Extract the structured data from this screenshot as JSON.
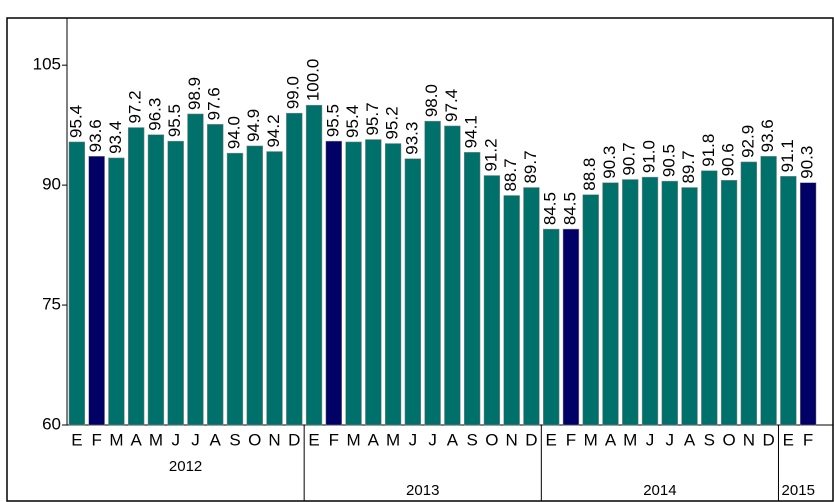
{
  "chart_data": {
    "type": "bar",
    "categories": [
      "E",
      "F",
      "M",
      "A",
      "M",
      "J",
      "J",
      "A",
      "S",
      "O",
      "N",
      "D",
      "E",
      "F",
      "M",
      "A",
      "M",
      "J",
      "J",
      "A",
      "S",
      "O",
      "N",
      "D",
      "E",
      "F",
      "M",
      "A",
      "M",
      "J",
      "J",
      "A",
      "S",
      "O",
      "N",
      "D",
      "E",
      "F"
    ],
    "groups": [
      "2012",
      "2013",
      "2014",
      "2015"
    ],
    "values": [
      95.4,
      93.6,
      93.4,
      97.2,
      96.3,
      95.5,
      98.9,
      97.6,
      94.0,
      94.9,
      94.2,
      99.0,
      100.0,
      95.5,
      95.4,
      95.7,
      95.2,
      93.3,
      98.0,
      97.4,
      94.1,
      91.2,
      88.7,
      89.7,
      84.5,
      84.5,
      88.8,
      90.3,
      90.7,
      91.0,
      90.5,
      89.7,
      91.8,
      90.6,
      92.9,
      93.6,
      91.1,
      90.3
    ],
    "value_labels": [
      "95.4",
      "93.6",
      "93.4",
      "97.2",
      "96.3",
      "95.5",
      "98.9",
      "97.6",
      "94.0",
      "94.9",
      "94.2",
      "99.0",
      "100.0",
      "95.5",
      "95.4",
      "95.7",
      "95.2",
      "93.3",
      "98.0",
      "97.4",
      "94.1",
      "91.2",
      "88.7",
      "89.7",
      "84.5",
      "84.5",
      "88.8",
      "90.3",
      "90.7",
      "91.0",
      "90.5",
      "89.7",
      "91.8",
      "90.6",
      "92.9",
      "93.6",
      "91.1",
      "90.3"
    ],
    "colors": [
      "#00706b",
      "#000066",
      "#00706b",
      "#00706b",
      "#00706b",
      "#00706b",
      "#00706b",
      "#00706b",
      "#00706b",
      "#00706b",
      "#00706b",
      "#00706b",
      "#00706b",
      "#000066",
      "#00706b",
      "#00706b",
      "#00706b",
      "#00706b",
      "#00706b",
      "#00706b",
      "#00706b",
      "#00706b",
      "#00706b",
      "#00706b",
      "#00706b",
      "#000066",
      "#00706b",
      "#00706b",
      "#00706b",
      "#00706b",
      "#00706b",
      "#00706b",
      "#00706b",
      "#00706b",
      "#00706b",
      "#00706b",
      "#00706b",
      "#000066"
    ],
    "ylim": [
      60,
      110.9
    ],
    "yticks": [
      60,
      75,
      90,
      105
    ]
  }
}
